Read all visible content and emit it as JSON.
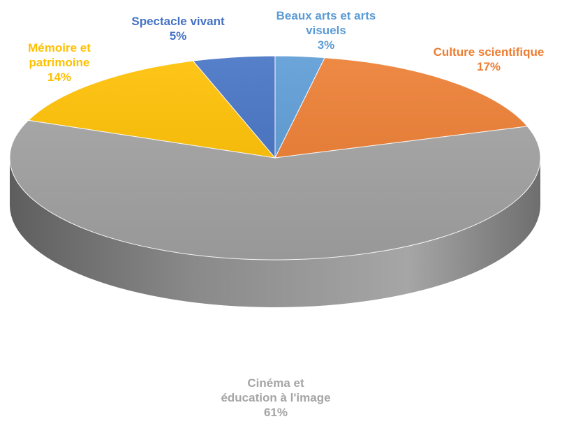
{
  "chart_data": {
    "type": "pie",
    "style": "3d",
    "start_angle_deg": 0,
    "direction": "clockwise",
    "slices": [
      {
        "name": "Beaux arts et arts visuels",
        "value": 3,
        "label_pct": "3%",
        "color": "#5B9BD5"
      },
      {
        "name": "Culture scientifique",
        "value": 17,
        "label_pct": "17%",
        "color": "#ED7D31"
      },
      {
        "name": "Cinéma et éducation à l'image",
        "value": 61,
        "label_pct": "61%",
        "color": "#A5A5A5"
      },
      {
        "name": "Mémoire et patrimoine",
        "value": 14,
        "label_pct": "14%",
        "color": "#FFC000"
      },
      {
        "name": "Spectacle vivant",
        "value": 5,
        "label_pct": "5%",
        "color": "#4472C4"
      }
    ],
    "data_labels": true,
    "legend": "none"
  }
}
